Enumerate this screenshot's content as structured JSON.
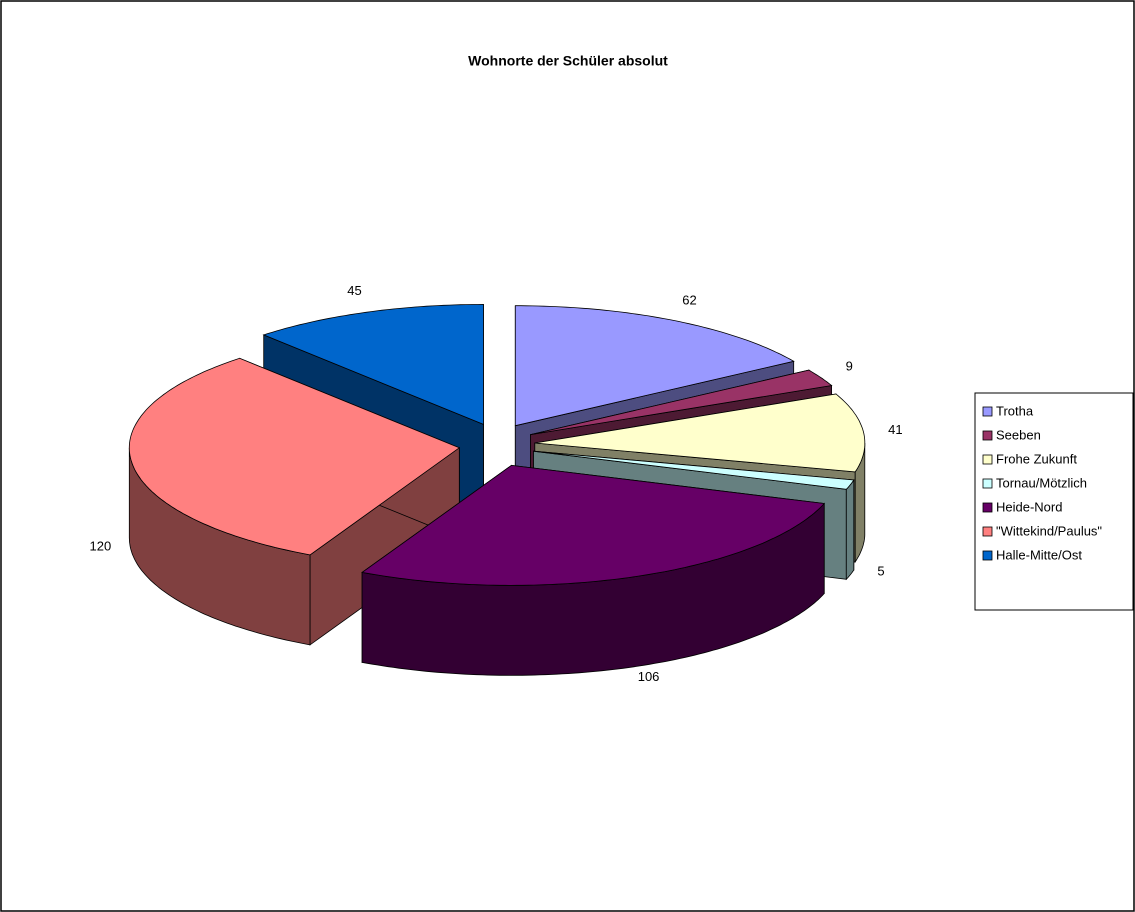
{
  "chart_data": {
    "type": "pie3d",
    "title": "Wohnorte der Schüler absolut",
    "categories": [
      "Trotha",
      "Seeben",
      "Frohe Zukunft",
      "Tornau/Mötzlich",
      "Heide-Nord",
      "\"Wittekind/Paulus\"",
      "Halle-Mitte/Ost"
    ],
    "values": [
      62,
      9,
      41,
      5,
      106,
      120,
      45
    ],
    "colors": [
      "#9999ff",
      "#993366",
      "#ffffcc",
      "#ccffff",
      "#660066",
      "#ff8080",
      "#0066cc"
    ],
    "legend": "right"
  }
}
